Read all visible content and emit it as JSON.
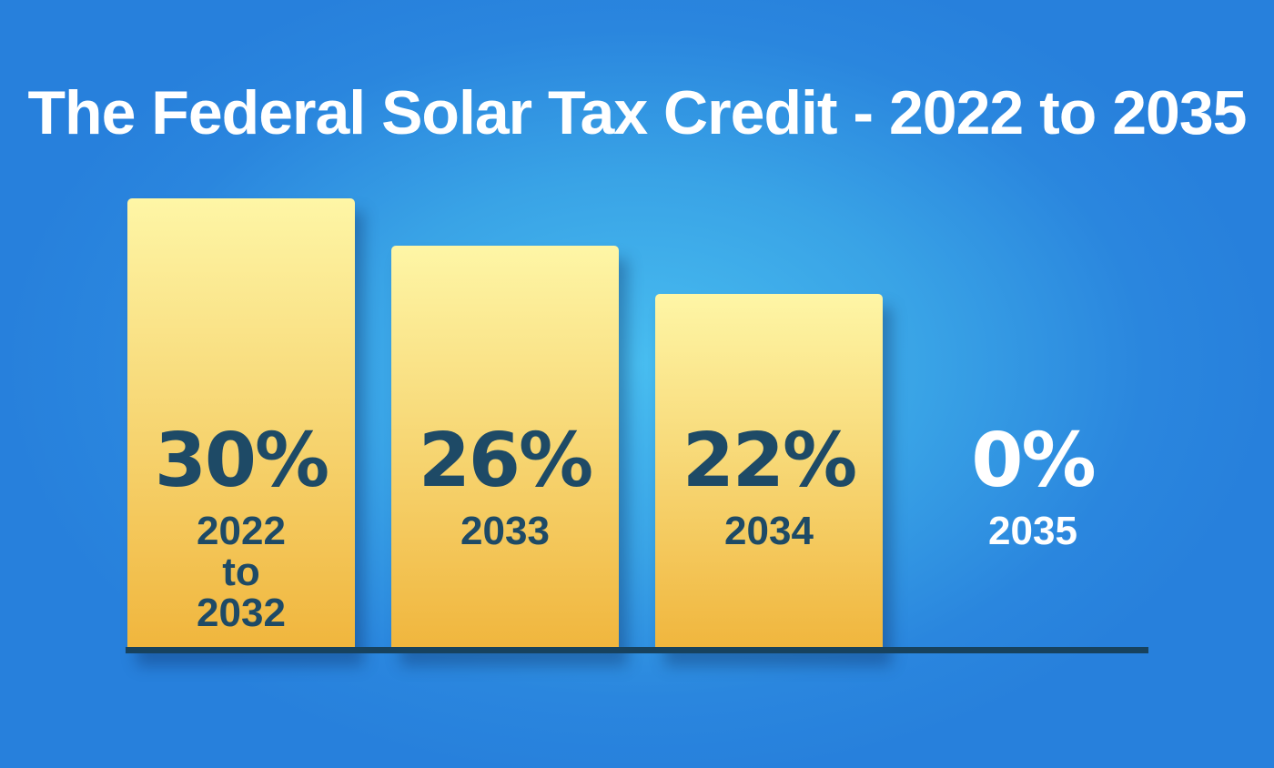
{
  "chart_data": {
    "type": "bar",
    "title": "The Federal Solar Tax Credit - 2022 to 2035",
    "xlabel": "",
    "ylabel": "",
    "ylim": [
      0,
      30
    ],
    "grid": false,
    "categories": [
      "2022\nto\n2032",
      "2033",
      "2034",
      "2035"
    ],
    "values": [
      30,
      26,
      22,
      0
    ],
    "value_labels": [
      "30%",
      "26%",
      "22%",
      "0%"
    ],
    "colors": {
      "bar_top": "#fef6a6",
      "bar_bottom": "#f0b53c",
      "label_dark": "#1e4a66",
      "label_light": "#ffffff",
      "baseline": "#17425e"
    }
  }
}
